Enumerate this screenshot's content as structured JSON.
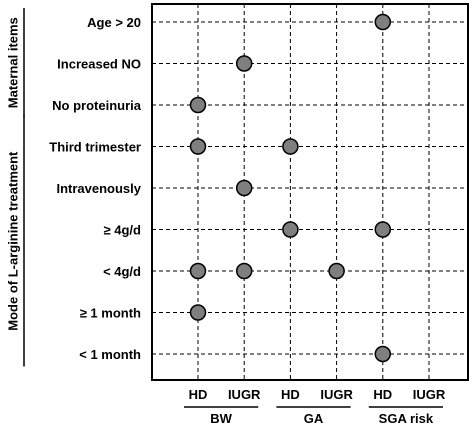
{
  "chart_data": {
    "type": "scatter",
    "rows": [
      "Age > 20",
      "Increased NO",
      "No proteinuria",
      "Third trimester",
      "Intravenously",
      "≥ 4g/d",
      "< 4g/d",
      "≥ 1 month",
      "< 1 month"
    ],
    "row_groups": [
      {
        "label": "Maternal items",
        "rows": [
          "Age > 20",
          "Increased NO",
          "No proteinuria"
        ]
      },
      {
        "label": "Mode of L-arginine treatment",
        "rows": [
          "Third trimester",
          "Intravenously",
          "≥ 4g/d",
          "< 4g/d",
          "≥ 1 month",
          "< 1 month"
        ]
      }
    ],
    "columns": [
      "HD",
      "IUGR",
      "HD",
      "IUGR",
      "HD",
      "IUGR"
    ],
    "column_groups": [
      {
        "label": "BW",
        "columns": [
          0,
          1
        ]
      },
      {
        "label": "GA",
        "columns": [
          2,
          3
        ]
      },
      {
        "label": "SGA risk",
        "columns": [
          4,
          5
        ]
      }
    ],
    "points": [
      {
        "row": 0,
        "col": 4
      },
      {
        "row": 1,
        "col": 1
      },
      {
        "row": 2,
        "col": 0
      },
      {
        "row": 3,
        "col": 0
      },
      {
        "row": 3,
        "col": 2
      },
      {
        "row": 4,
        "col": 1
      },
      {
        "row": 5,
        "col": 2
      },
      {
        "row": 5,
        "col": 4
      },
      {
        "row": 6,
        "col": 0
      },
      {
        "row": 6,
        "col": 1
      },
      {
        "row": 6,
        "col": 3
      },
      {
        "row": 7,
        "col": 0
      },
      {
        "row": 8,
        "col": 4
      }
    ],
    "grid": true,
    "marker_color": "#7f7f7f"
  }
}
